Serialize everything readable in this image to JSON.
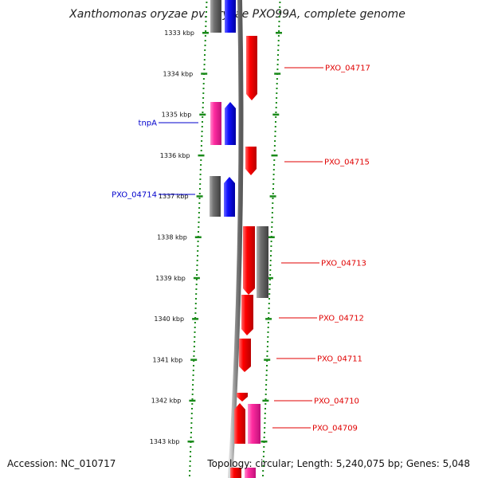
{
  "title": "Xanthomonas oryzae pv. oryzae PXO99A, complete genome",
  "accession": "Accession: NC_010717",
  "summary": "Topology: circular; Length: 5,240,075 bp; Genes: 5,048",
  "ticks": [
    {
      "label": "1333 kbp",
      "kbp": 1333
    },
    {
      "label": "1334 kbp",
      "kbp": 1334
    },
    {
      "label": "1335 kbp",
      "kbp": 1335
    },
    {
      "label": "1336 kbp",
      "kbp": 1336
    },
    {
      "label": "1337 kbp",
      "kbp": 1337
    },
    {
      "label": "1338 kbp",
      "kbp": 1338
    },
    {
      "label": "1339 kbp",
      "kbp": 1339
    },
    {
      "label": "1340 kbp",
      "kbp": 1340
    },
    {
      "label": "1341 kbp",
      "kbp": 1341
    },
    {
      "label": "1342 kbp",
      "kbp": 1342
    },
    {
      "label": "1343 kbp",
      "kbp": 1343
    }
  ],
  "colors": {
    "red": "#ff0000",
    "blue": "#1010ff",
    "pink": "#ff2ca0",
    "gray": "#707070",
    "axis": "#777777",
    "ticks": "#1a8a1a",
    "label_red": "#e00000",
    "label_blue": "#0000cc"
  },
  "labels": [
    {
      "text": "PXO_04717",
      "side": "right",
      "color": "label_red"
    },
    {
      "text": "tnpA",
      "side": "left",
      "color": "label_blue"
    },
    {
      "text": "PXO_04715",
      "side": "right",
      "color": "label_red"
    },
    {
      "text": "PXO_04714",
      "side": "left",
      "color": "label_blue"
    },
    {
      "text": "PXO_04713",
      "side": "right",
      "color": "label_red"
    },
    {
      "text": "PXO_04712",
      "side": "right",
      "color": "label_red"
    },
    {
      "text": "PXO_04711",
      "side": "right",
      "color": "label_red"
    },
    {
      "text": "PXO_04710",
      "side": "right",
      "color": "label_red"
    },
    {
      "text": "PXO_04709",
      "side": "right",
      "color": "label_red"
    }
  ]
}
